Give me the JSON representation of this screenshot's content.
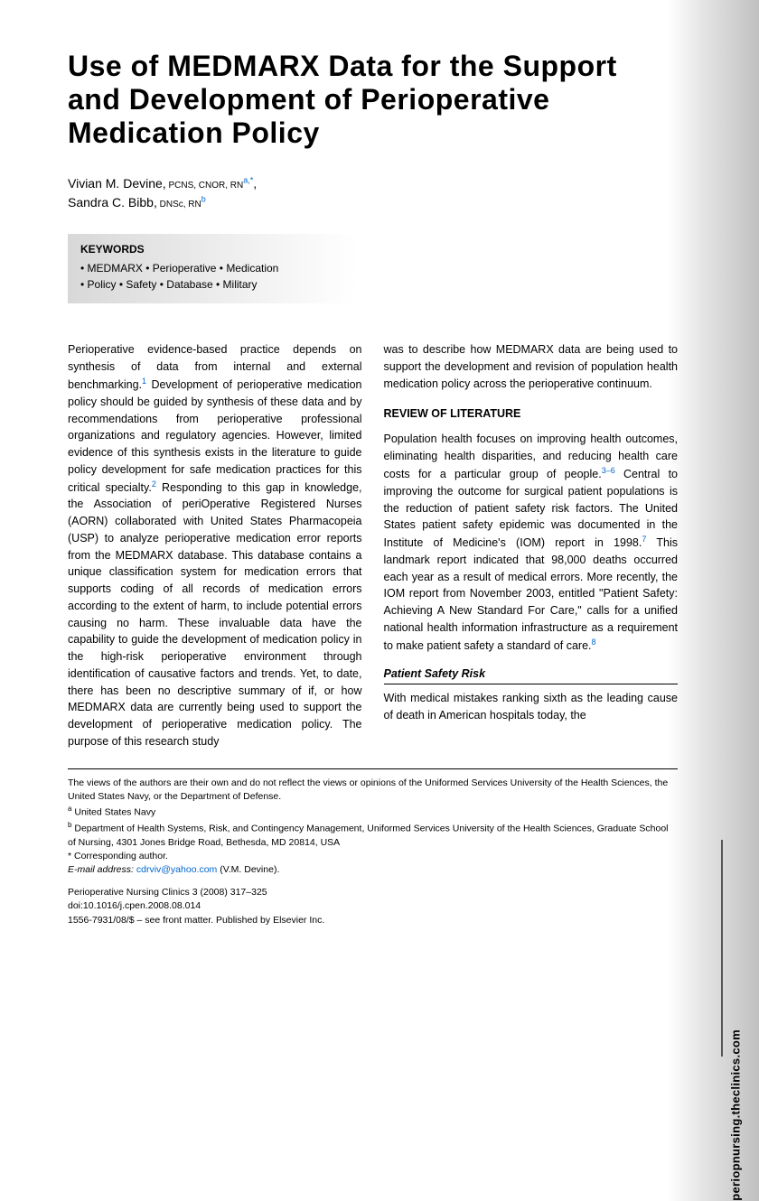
{
  "title": "Use of MEDMARX Data for the Support and Development of Perioperative Medication Policy",
  "authors": {
    "a1_name": "Vivian M. Devine,",
    "a1_cred": " PCNS, CNOR, RN",
    "a1_sup": "a,*",
    "a2_name": "Sandra C. Bibb,",
    "a2_cred": " DNSc, RN",
    "a2_sup": "b"
  },
  "keywords": {
    "heading": "KEYWORDS",
    "line1": "• MEDMARX • Perioperative • Medication",
    "line2": "• Policy • Safety • Database • Military"
  },
  "body": {
    "col1_p1a": "Perioperative evidence-based practice depends on synthesis of data from internal and external benchmarking.",
    "col1_c1": "1",
    "col1_p1b": " Development of perioperative medication policy should be guided by synthesis of these data and by recommendations from perioperative professional organizations and regulatory agencies. However, limited evidence of this synthesis exists in the literature to guide policy development for safe medication practices for this critical specialty.",
    "col1_c2": "2",
    "col1_p1c": " Responding to this gap in knowledge, the Association of periOperative Registered Nurses (AORN) collaborated with United States Pharmacopeia (USP) to analyze perioperative medication error reports from the MEDMARX database. This database contains a unique classification system for medication errors that supports coding of all records of medication errors according to the extent of harm, to include potential errors causing no harm. These invaluable data have the capability to guide the development of medication policy in the high-risk perioperative environment through identification of causative factors and trends. Yet, to date, there has been no descriptive summary of if, or how MEDMARX data are currently being used to support the development of perioperative medication policy. The purpose of this research study",
    "col2_p1": "was to describe how MEDMARX data are being used to support the development and revision of population health medication policy across the perioperative continuum.",
    "review_heading": "REVIEW OF LITERATURE",
    "col2_p2a": "Population health focuses on improving health outcomes, eliminating health disparities, and reducing health care costs for a particular group of people.",
    "col2_c3": "3–6",
    "col2_p2b": " Central to improving the outcome for surgical patient populations is the reduction of patient safety risk factors. The United States patient safety epidemic was documented in the Institute of Medicine's (IOM) report in 1998.",
    "col2_c7": "7",
    "col2_p2c": " This landmark report indicated that 98,000 deaths occurred each year as a result of medical errors. More recently, the IOM report from November 2003, entitled \"Patient Safety: Achieving A New Standard For Care,\" calls for a unified national health information infrastructure as a requirement to make patient safety a standard of care.",
    "col2_c8": "8",
    "subsect_heading": "Patient Safety Risk",
    "col2_p3": "With medical mistakes ranking sixth as the leading cause of death in American hospitals today, the"
  },
  "footnotes": {
    "disclaimer": "The views of the authors are their own and do not reflect the views or opinions of the Uniformed Services University of the Health Sciences, the United States Navy, or the Department of Defense.",
    "aff_a_sup": "a",
    "aff_a": " United States Navy",
    "aff_b_sup": "b",
    "aff_b": " Department of Health Systems, Risk, and Contingency Management, Uniformed Services University of the Health Sciences, Graduate School of Nursing, 4301 Jones Bridge Road, Bethesda, MD 20814, USA",
    "corr": "* Corresponding author.",
    "email_label": "E-mail address: ",
    "email": "cdrviv@yahoo.com",
    "email_suffix": " (V.M. Devine)."
  },
  "journal": {
    "line1": "Perioperative Nursing Clinics 3 (2008) 317–325",
    "line2": "doi:10.1016/j.cpen.2008.08.014",
    "line3": "1556-7931/08/$ – see front matter. Published by Elsevier Inc."
  },
  "side_url": "periopnursing.theclinics.com"
}
